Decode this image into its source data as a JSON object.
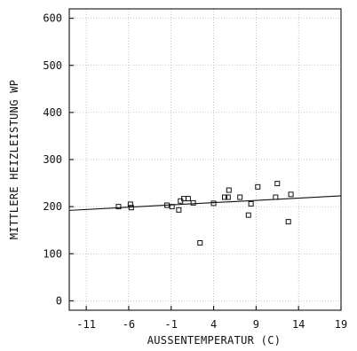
{
  "chart_data": {
    "type": "scatter",
    "xlabel": "AUSSENTEMPERATUR   (C)",
    "ylabel": "MITTLERE HEIZLEISTUNG WP",
    "xlim": [
      -13,
      19
    ],
    "ylim": [
      -20,
      620
    ],
    "x_ticks": [
      -11,
      -6,
      -1,
      4,
      9,
      14,
      19
    ],
    "y_ticks": [
      0,
      100,
      200,
      300,
      400,
      500,
      600
    ],
    "x_tick_labels": [
      "-11",
      "-6",
      "-1",
      "4",
      "9",
      "14",
      "19"
    ],
    "y_tick_labels": [
      "0",
      "100",
      "200",
      "300",
      "400",
      "500",
      "600"
    ],
    "grid": true,
    "series": [
      {
        "type": "scatter",
        "marker": "square",
        "color": "#111111",
        "points": [
          {
            "x": -7.2,
            "y": 200
          },
          {
            "x": -5.8,
            "y": 205
          },
          {
            "x": -5.7,
            "y": 198
          },
          {
            "x": -1.5,
            "y": 203
          },
          {
            "x": -0.9,
            "y": 200
          },
          {
            "x": -0.1,
            "y": 193
          },
          {
            "x": 0.1,
            "y": 212
          },
          {
            "x": 0.5,
            "y": 217
          },
          {
            "x": 1.0,
            "y": 217
          },
          {
            "x": 1.6,
            "y": 208
          },
          {
            "x": 2.4,
            "y": 123
          },
          {
            "x": 4.0,
            "y": 207
          },
          {
            "x": 5.3,
            "y": 220
          },
          {
            "x": 5.7,
            "y": 220
          },
          {
            "x": 5.8,
            "y": 235
          },
          {
            "x": 7.1,
            "y": 220
          },
          {
            "x": 8.1,
            "y": 182
          },
          {
            "x": 8.4,
            "y": 206
          },
          {
            "x": 9.2,
            "y": 242
          },
          {
            "x": 11.3,
            "y": 220
          },
          {
            "x": 11.5,
            "y": 249
          },
          {
            "x": 12.8,
            "y": 168
          },
          {
            "x": 13.1,
            "y": 226
          }
        ]
      },
      {
        "type": "line",
        "color": "#111111",
        "points": [
          {
            "x": -13,
            "y": 192
          },
          {
            "x": 19,
            "y": 223
          }
        ]
      }
    ]
  }
}
